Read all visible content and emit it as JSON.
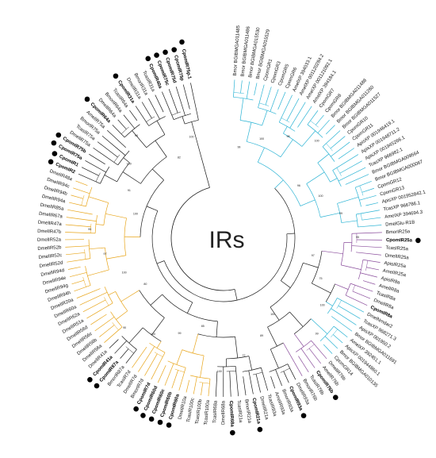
{
  "center_label": "IRs",
  "colors": {
    "cyan": "#2ab3d4",
    "orange": "#e8a51a",
    "purple": "#8a4d9c",
    "black": "#1a1a1a",
    "marker": "#000000"
  },
  "tree": {
    "leaves": [
      {
        "label": "Bmor BGIBMGA011485",
        "color": "cyan"
      },
      {
        "label": "Bmor BGIBMGA011486",
        "color": "cyan"
      },
      {
        "label": "Bmor BGIBMGA015530",
        "color": "cyan"
      },
      {
        "label": "Bmor BGIBMGA015529",
        "color": "cyan"
      },
      {
        "label": "CpomGR1",
        "color": "cyan"
      },
      {
        "label": "CpomGR3",
        "color": "cyan"
      },
      {
        "label": "CpomGR5",
        "color": "cyan"
      },
      {
        "label": "CpomGR6",
        "color": "cyan"
      },
      {
        "label": "AmelXP 394033.1",
        "color": "cyan"
      },
      {
        "label": "AmelXP 001120284.2",
        "color": "cyan"
      },
      {
        "label": "AmelXP 001121092.1",
        "color": "cyan"
      },
      {
        "label": "AmelXP 394184.1",
        "color": "cyan"
      },
      {
        "label": "CpomGR7",
        "color": "cyan"
      },
      {
        "label": "CpomGR8",
        "color": "cyan"
      },
      {
        "label": "Bmor BGIBMGA011488",
        "color": "cyan"
      },
      {
        "label": "Bmor BGIBMGA011260",
        "color": "cyan"
      },
      {
        "label": "Bmor BGIBMGA011527",
        "color": "cyan"
      },
      {
        "label": "CpomGR10",
        "color": "cyan"
      },
      {
        "label": "CpomGR11",
        "color": "cyan"
      },
      {
        "label": "ApisXP 001946419.1",
        "color": "cyan"
      },
      {
        "label": "ApisXP 001948711.2",
        "color": "cyan"
      },
      {
        "label": "ApisXP 001945266.1",
        "color": "cyan"
      },
      {
        "label": "TcasXP 966982.1",
        "color": "cyan"
      },
      {
        "label": "Bmor BGIBMGA009564",
        "color": "cyan"
      },
      {
        "label": "Bmor BGIBMGA000067",
        "color": "cyan"
      },
      {
        "label": "CpomGR12",
        "color": "cyan"
      },
      {
        "label": "CpomGR13",
        "color": "cyan"
      },
      {
        "label": "ApisXP 001952842.1",
        "color": "cyan"
      },
      {
        "label": "TcasXP 966786.1",
        "color": "cyan"
      },
      {
        "label": "AmelXP 394694.3",
        "color": "cyan"
      },
      {
        "label": "DmelGlu-R1B",
        "color": "cyan"
      },
      {
        "label": "BmorIR25a",
        "color": "purple"
      },
      {
        "label": "CpomIR25a",
        "color": "purple",
        "highlight": true,
        "marker": true
      },
      {
        "label": "TcasIR25a",
        "color": "purple"
      },
      {
        "label": "DmelIR25a",
        "color": "purple"
      },
      {
        "label": "ApisIR25a",
        "color": "purple"
      },
      {
        "label": "AmelIR25a",
        "color": "purple"
      },
      {
        "label": "ApisIR8a",
        "color": "purple"
      },
      {
        "label": "AmelIR8a",
        "color": "purple"
      },
      {
        "label": "TcasIR8a",
        "color": "purple"
      },
      {
        "label": "DmelIR8a",
        "color": "purple"
      },
      {
        "label": "CpomIR8a",
        "color": "purple",
        "highlight": true
      },
      {
        "label": "DmelNmdar2",
        "color": "cyan"
      },
      {
        "label": "TcasXP 968271.3",
        "color": "cyan"
      },
      {
        "label": "ApisXP 001950.2",
        "color": "cyan"
      },
      {
        "label": "Bmor BGIBMGA011691",
        "color": "cyan"
      },
      {
        "label": "AmelXP 392451.1",
        "color": "cyan"
      },
      {
        "label": "ApisXP 001944860.1",
        "color": "cyan"
      },
      {
        "label": "Bmor BGIBMGA010135",
        "color": "cyan"
      },
      {
        "label": "CpomGR14",
        "color": "cyan"
      },
      {
        "label": "DmelIR76b",
        "color": "purple"
      },
      {
        "label": "AmelIR76b",
        "color": "purple"
      },
      {
        "label": "CpomIR76b",
        "color": "purple",
        "highlight": true,
        "marker": true
      },
      {
        "label": "TcasIR76b",
        "color": "purple"
      },
      {
        "label": "BmorIR76b",
        "color": "purple"
      },
      {
        "label": "DmelIR93a",
        "color": "black"
      },
      {
        "label": "CpomIR93a",
        "color": "black",
        "highlight": true,
        "marker": true
      },
      {
        "label": "BmorIR93a",
        "color": "black"
      },
      {
        "label": "AmelIR93a",
        "color": "black"
      },
      {
        "label": "TcasIR93a",
        "color": "black"
      },
      {
        "label": "DmelIR21a",
        "color": "black"
      },
      {
        "label": "CpomIR21a",
        "color": "black",
        "highlight": true,
        "marker": true
      },
      {
        "label": "BmorIR21a",
        "color": "black"
      },
      {
        "label": "TcasIR21a",
        "color": "black"
      },
      {
        "label": "CpomIR68a",
        "color": "black",
        "highlight": true,
        "marker": true
      },
      {
        "label": "DmelIR68a",
        "color": "black"
      },
      {
        "label": "TcasIR68a",
        "color": "black"
      },
      {
        "label": "TcasIR100a",
        "color": "orange"
      },
      {
        "label": "TcasIR100b",
        "color": "orange"
      },
      {
        "label": "TcasIR100c",
        "color": "orange"
      },
      {
        "label": "DmelIR10a",
        "color": "orange"
      },
      {
        "label": "CpomIR60a",
        "color": "orange",
        "highlight": true,
        "marker": true
      },
      {
        "label": "CpomIR60b",
        "color": "orange",
        "highlight": true,
        "marker": true
      },
      {
        "label": "CpomIR60c",
        "color": "orange",
        "highlight": true,
        "marker": true
      },
      {
        "label": "CpomIR60d",
        "color": "orange",
        "highlight": true,
        "marker": true
      },
      {
        "label": "CpomIR7d",
        "color": "orange",
        "highlight": true,
        "marker": true
      },
      {
        "label": "BmorIR7d",
        "color": "orange"
      },
      {
        "label": "DmelIR7d",
        "color": "orange"
      },
      {
        "label": "TcasIR7d",
        "color": "orange"
      },
      {
        "label": "BmorIR87a",
        "color": "black"
      },
      {
        "label": "CpomIR87a",
        "color": "black",
        "highlight": true,
        "marker": true
      },
      {
        "label": "CpomIR41a",
        "color": "black",
        "highlight": true,
        "marker": true
      },
      {
        "label": "DmelIR41a",
        "color": "black"
      },
      {
        "label": "DmelIR56a",
        "color": "orange"
      },
      {
        "label": "DmelIR56b",
        "color": "orange"
      },
      {
        "label": "DmelIR56c",
        "color": "orange"
      },
      {
        "label": "DmelIR56d",
        "color": "orange"
      },
      {
        "label": "DmelIR51a",
        "color": "orange"
      },
      {
        "label": "DmelIR62a",
        "color": "orange"
      },
      {
        "label": "DmelIR60a",
        "color": "orange"
      },
      {
        "label": "DmelIR20a",
        "color": "orange"
      },
      {
        "label": "DmelIR94h",
        "color": "orange"
      },
      {
        "label": "DmelIR94g",
        "color": "orange"
      },
      {
        "label": "DmelIR94e",
        "color": "orange"
      },
      {
        "label": "DmelIR94d",
        "color": "orange"
      },
      {
        "label": "DmelIR52d",
        "color": "orange"
      },
      {
        "label": "DmelIR52c",
        "color": "orange"
      },
      {
        "label": "DmelIR52b",
        "color": "orange"
      },
      {
        "label": "DmelIR52a",
        "color": "orange"
      },
      {
        "label": "DmelIR47b",
        "color": "orange"
      },
      {
        "label": "DmelIR47a",
        "color": "orange"
      },
      {
        "label": "DmelIR67a",
        "color": "orange"
      },
      {
        "label": "DmelIR85a",
        "color": "orange"
      },
      {
        "label": "DmelIR94a",
        "color": "orange"
      },
      {
        "label": "DmelIR94b",
        "color": "orange"
      },
      {
        "label": "DmelIR94c",
        "color": "orange"
      },
      {
        "label": "DmelIR48a",
        "color": "orange"
      },
      {
        "label": "CpomIR2",
        "color": "black",
        "highlight": true,
        "marker": true
      },
      {
        "label": "CpomIR1",
        "color": "black",
        "highlight": true,
        "marker": true
      },
      {
        "label": "CpomIR75a",
        "color": "black",
        "highlight": true,
        "marker": true
      },
      {
        "label": "CpomIR75b",
        "color": "black",
        "highlight": true,
        "marker": true
      },
      {
        "label": "DmelIR75a",
        "color": "black"
      },
      {
        "label": "TcasIR75a",
        "color": "black"
      },
      {
        "label": "BmorIR75a",
        "color": "black"
      },
      {
        "label": "AmelIR75a",
        "color": "black"
      },
      {
        "label": "CpomIR64a",
        "color": "black",
        "highlight": true,
        "marker": true
      },
      {
        "label": "DmelIR64a",
        "color": "black"
      },
      {
        "label": "BmorIR64a",
        "color": "black"
      },
      {
        "label": "TcasIR64a",
        "color": "black"
      },
      {
        "label": "CpomIR31a",
        "color": "black",
        "highlight": true,
        "marker": true
      },
      {
        "label": "DmelIR31a",
        "color": "black"
      },
      {
        "label": "BmorIR31a",
        "color": "black"
      },
      {
        "label": "TcasIR31a",
        "color": "black"
      },
      {
        "label": "CpomIR40a",
        "color": "black",
        "highlight": true,
        "marker": true
      },
      {
        "label": "CpomIR75c",
        "color": "black",
        "highlight": true,
        "marker": true
      },
      {
        "label": "CpomIR75d",
        "color": "black",
        "highlight": true,
        "marker": true
      },
      {
        "label": "CpomIR75p",
        "color": "black",
        "highlight": true,
        "marker": true
      },
      {
        "label": "CpomIR75p.1",
        "color": "black",
        "highlight": true,
        "marker": true
      }
    ],
    "bootstrap": [
      "99",
      "100",
      "98",
      "100",
      "96",
      "100",
      "99",
      "95",
      "97",
      "75",
      "100",
      "99",
      "100",
      "89",
      "72",
      "100",
      "85",
      "99",
      "100",
      "90",
      "80",
      "100",
      "97",
      "95",
      "100",
      "91",
      "100",
      "98",
      "82",
      "100"
    ]
  }
}
